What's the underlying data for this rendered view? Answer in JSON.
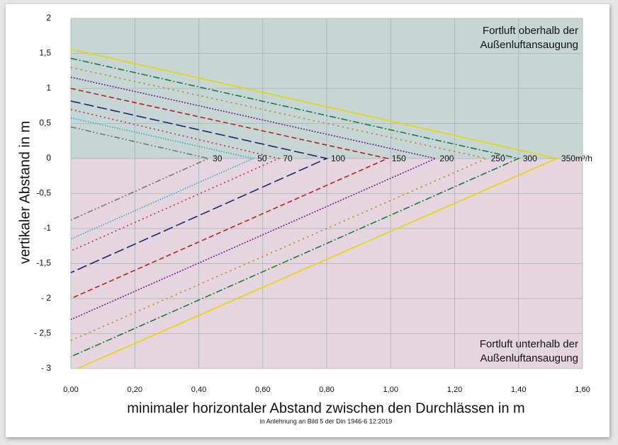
{
  "chart_data": {
    "type": "line",
    "title": "minimaler horizontaler Abstand zwischen den Durchlässen in m",
    "note": "in Anlehnung an Bild 5 der Din 1946-6 12:2019",
    "x_label": "minimaler horizontaler Abstand zwischen den Durchlässen in m",
    "y_label": "vertikaler Abstand in m",
    "annotations": [
      {
        "lines": [
          "Fortluft oberhalb der",
          "Außenluftansaugung"
        ],
        "corner": "top-right",
        "color": "#c5d6d4"
      },
      {
        "lines": [
          "Fortluft unterhalb der",
          "Außenluftansaugung"
        ],
        "corner": "bottom-right",
        "color": "#e5d5df"
      }
    ],
    "xlim": [
      0,
      1.6
    ],
    "ylim": [
      -3,
      2
    ],
    "xticks": [
      {
        "value": 0,
        "label": "0,00"
      },
      {
        "value": 0.2,
        "label": "0,20"
      },
      {
        "value": 0.4,
        "label": "0,40"
      },
      {
        "value": 0.6,
        "label": "0,60"
      },
      {
        "value": 0.8,
        "label": "0,80"
      },
      {
        "value": 1,
        "label": "1,00"
      },
      {
        "value": 1.2,
        "label": "1,20"
      },
      {
        "value": 1.4,
        "label": "1,40"
      },
      {
        "value": 1.6,
        "label": "1,60"
      }
    ],
    "yticks": [
      {
        "value": -3,
        "label": "- 3"
      },
      {
        "value": -2.5,
        "label": "- 2,5"
      },
      {
        "value": -2,
        "label": "- 2"
      },
      {
        "value": -1.5,
        "label": "-1,5"
      },
      {
        "value": -1,
        "label": "-1"
      },
      {
        "value": -0.5,
        "label": "-0,5"
      },
      0,
      {
        "value": 0.5,
        "label": "0,5"
      },
      1,
      {
        "value": 1.5,
        "label": "1,5"
      },
      2
    ],
    "grid": true,
    "series": [
      {
        "name": "30",
        "color": "#777777",
        "dash": "8 3 2 3 2 3",
        "x": [
          0,
          0.43,
          0
        ],
        "values": [
          0.45,
          0,
          -0.88
        ]
      },
      {
        "name": "50",
        "color": "#30b0c0",
        "dash": "1.5 2",
        "x": [
          0,
          0.57,
          0
        ],
        "values": [
          0.58,
          0,
          -1.15
        ]
      },
      {
        "name": "70",
        "color": "#c0304a",
        "dash": "2 4",
        "x": [
          0,
          0.65,
          0
        ],
        "values": [
          0.7,
          0,
          -1.32
        ]
      },
      {
        "name": "100",
        "color": "#1a2a6c",
        "dash": "14 5",
        "x": [
          0,
          0.8,
          0
        ],
        "values": [
          0.82,
          0,
          -1.63
        ]
      },
      {
        "name": "150",
        "color": "#b82020",
        "dash": "7 4",
        "x": [
          0,
          0.99,
          0
        ],
        "values": [
          1.0,
          0,
          -2.0
        ]
      },
      {
        "name": "200",
        "color": "#7a1f8a",
        "dash": "2 2",
        "x": [
          0,
          1.14,
          0
        ],
        "values": [
          1.16,
          0,
          -2.3
        ]
      },
      {
        "name": "250",
        "color": "#c08020",
        "dash": "2 5",
        "x": [
          0,
          1.3,
          0
        ],
        "values": [
          1.3,
          0,
          -2.6
        ]
      },
      {
        "name": "300",
        "color": "#1a7a3a",
        "dash": "9 3 2 3",
        "x": [
          0,
          1.4,
          0
        ],
        "values": [
          1.43,
          0,
          -2.83
        ]
      },
      {
        "name": "350m³/h",
        "color": "#e8d800",
        "dash": "",
        "x": [
          0,
          1.52,
          0.02
        ],
        "values": [
          1.56,
          0,
          -3
        ]
      }
    ]
  }
}
